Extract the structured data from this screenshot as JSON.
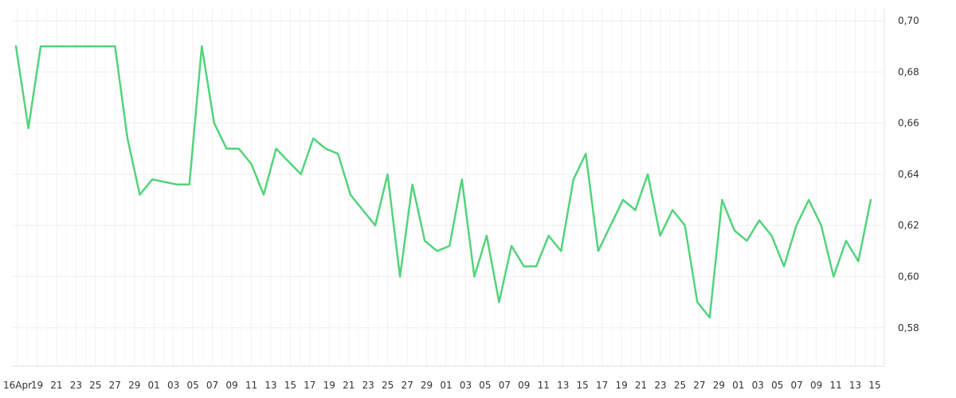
{
  "chart_data": {
    "type": "line",
    "x_tick_labels": [
      "16Apr",
      "19",
      "21",
      "23",
      "25",
      "27",
      "29",
      "01",
      "03",
      "05",
      "07",
      "09",
      "11",
      "13",
      "15",
      "17",
      "19",
      "21",
      "23",
      "25",
      "27",
      "29",
      "01",
      "03",
      "05",
      "07",
      "09",
      "11",
      "13",
      "15",
      "17",
      "19",
      "21",
      "23",
      "25",
      "27",
      "29",
      "01",
      "03",
      "05",
      "07",
      "09",
      "11",
      "13",
      "15"
    ],
    "y_tick_labels": [
      "0,70",
      "0,68",
      "0,66",
      "0,64",
      "0,62",
      "0,60",
      "0,58"
    ],
    "ylim": [
      0.565,
      0.705
    ],
    "grid": true,
    "legend": "none",
    "series": [
      {
        "color": "#53d37c",
        "values": [
          0.69,
          0.658,
          0.69,
          0.69,
          0.69,
          0.69,
          0.69,
          0.69,
          0.69,
          0.654,
          0.632,
          0.638,
          0.637,
          0.636,
          0.636,
          0.69,
          0.66,
          0.65,
          0.65,
          0.644,
          0.632,
          0.65,
          0.645,
          0.64,
          0.654,
          0.65,
          0.648,
          0.632,
          0.626,
          0.62,
          0.64,
          0.6,
          0.636,
          0.614,
          0.61,
          0.612,
          0.638,
          0.6,
          0.616,
          0.59,
          0.612,
          0.604,
          0.604,
          0.616,
          0.61,
          0.638,
          0.648,
          0.61,
          0.62,
          0.63,
          0.626,
          0.64,
          0.616,
          0.626,
          0.62,
          0.59,
          0.584,
          0.63,
          0.618,
          0.614,
          0.622,
          0.616,
          0.604,
          0.62,
          0.63,
          0.62,
          0.6,
          0.614,
          0.606,
          0.63
        ]
      }
    ]
  }
}
